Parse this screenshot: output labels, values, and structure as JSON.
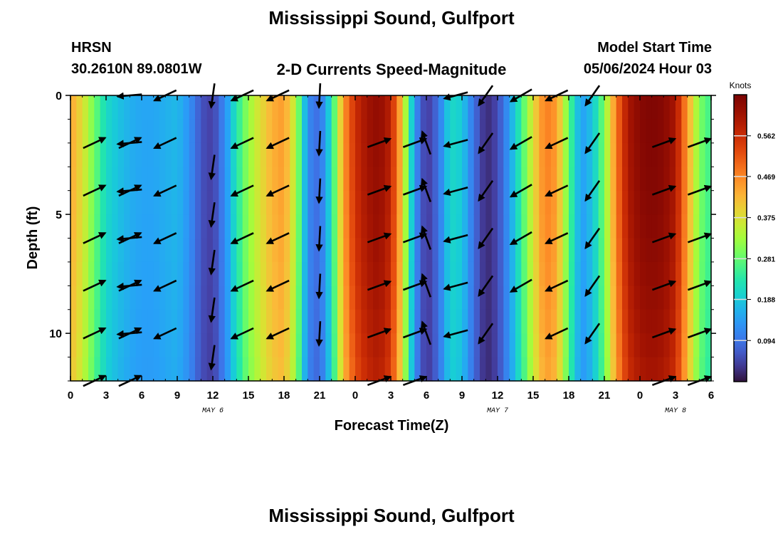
{
  "header": {
    "title": "Mississippi Sound, Gulfport",
    "station_id": "HRSN",
    "coordinates": "30.2610N  89.0801W",
    "subtitle": "2-D Currents Speed-Magnitude",
    "model_start_label": "Model Start Time",
    "model_start_value": "05/06/2024 Hour 03"
  },
  "footer": {
    "title": "Mississippi Sound, Gulfport"
  },
  "chart_data": {
    "type": "heatmap",
    "xlabel": "Forecast Time(Z)",
    "ylabel": "Depth (ft)",
    "x_range": [
      0,
      54
    ],
    "y_range": [
      0,
      12
    ],
    "y_inverted": true,
    "x_ticks": [
      0,
      3,
      6,
      9,
      12,
      15,
      18,
      21,
      24,
      27,
      30,
      33,
      36,
      39,
      42,
      45,
      48,
      51,
      54
    ],
    "x_tick_labels": [
      "0",
      "3",
      "6",
      "9",
      "12",
      "15",
      "18",
      "21",
      "0",
      "3",
      "6",
      "9",
      "12",
      "15",
      "18",
      "21",
      "0",
      "3",
      "6"
    ],
    "y_ticks": [
      0,
      5,
      10
    ],
    "y_tick_labels": [
      "0",
      "5",
      "10"
    ],
    "date_labels": [
      {
        "text": "MAY 6",
        "x": 12
      },
      {
        "text": "MAY 7",
        "x": 36
      },
      {
        "text": "MAY 8",
        "x": 51
      }
    ],
    "colorbar": {
      "title": "Knots",
      "range": [
        0,
        0.656
      ],
      "ticks": [
        0.094,
        0.188,
        0.281,
        0.375,
        0.469,
        0.562
      ],
      "tick_labels": [
        "0.094",
        "0.188",
        "0.281",
        "0.375",
        "0.469",
        "0.562"
      ],
      "colormap": "turbo"
    },
    "speed_by_hour": [
      {
        "t": 0,
        "v": 0.44
      },
      {
        "t": 1,
        "v": 0.38
      },
      {
        "t": 2,
        "v": 0.29
      },
      {
        "t": 3,
        "v": 0.21
      },
      {
        "t": 4,
        "v": 0.18
      },
      {
        "t": 5,
        "v": 0.16
      },
      {
        "t": 6,
        "v": 0.15
      },
      {
        "t": 7,
        "v": 0.15
      },
      {
        "t": 8,
        "v": 0.16
      },
      {
        "t": 9,
        "v": 0.17
      },
      {
        "t": 10,
        "v": 0.13
      },
      {
        "t": 11,
        "v": 0.06
      },
      {
        "t": 12,
        "v": 0.04
      },
      {
        "t": 13,
        "v": 0.12
      },
      {
        "t": 14,
        "v": 0.23
      },
      {
        "t": 15,
        "v": 0.32
      },
      {
        "t": 16,
        "v": 0.38
      },
      {
        "t": 17,
        "v": 0.43
      },
      {
        "t": 18,
        "v": 0.45
      },
      {
        "t": 19,
        "v": 0.34
      },
      {
        "t": 20,
        "v": 0.12
      },
      {
        "t": 21,
        "v": 0.08
      },
      {
        "t": 22,
        "v": 0.22
      },
      {
        "t": 23,
        "v": 0.45
      },
      {
        "t": 24,
        "v": 0.56
      },
      {
        "t": 25,
        "v": 0.61
      },
      {
        "t": 26,
        "v": 0.63
      },
      {
        "t": 27,
        "v": 0.58
      },
      {
        "t": 28,
        "v": 0.4
      },
      {
        "t": 29,
        "v": 0.13
      },
      {
        "t": 30,
        "v": 0.03
      },
      {
        "t": 31,
        "v": 0.09
      },
      {
        "t": 32,
        "v": 0.21
      },
      {
        "t": 33,
        "v": 0.19
      },
      {
        "t": 34,
        "v": 0.09
      },
      {
        "t": 35,
        "v": 0.02
      },
      {
        "t": 36,
        "v": 0.05
      },
      {
        "t": 37,
        "v": 0.14
      },
      {
        "t": 38,
        "v": 0.25
      },
      {
        "t": 39,
        "v": 0.38
      },
      {
        "t": 40,
        "v": 0.48
      },
      {
        "t": 41,
        "v": 0.45
      },
      {
        "t": 42,
        "v": 0.28
      },
      {
        "t": 43,
        "v": 0.14
      },
      {
        "t": 44,
        "v": 0.18
      },
      {
        "t": 45,
        "v": 0.3
      },
      {
        "t": 46,
        "v": 0.48
      },
      {
        "t": 47,
        "v": 0.6
      },
      {
        "t": 48,
        "v": 0.64
      },
      {
        "t": 49,
        "v": 0.65
      },
      {
        "t": 50,
        "v": 0.64
      },
      {
        "t": 51,
        "v": 0.6
      },
      {
        "t": 52,
        "v": 0.45
      },
      {
        "t": 53,
        "v": 0.3
      },
      {
        "t": 54,
        "v": 0.25
      }
    ],
    "vectors": [
      {
        "t": 2.0,
        "dir_deg": 65,
        "depths": [
          2,
          4,
          6,
          8,
          10,
          12
        ]
      },
      {
        "t": 5.0,
        "dir_deg": 65,
        "depths": [
          2,
          4,
          6,
          8,
          10,
          12
        ]
      },
      {
        "t": 5.0,
        "dir_deg": 265,
        "depths": [
          0,
          2,
          4,
          6,
          8,
          10
        ]
      },
      {
        "t": 8.0,
        "dir_deg": 245,
        "depths": [
          0,
          2,
          4,
          6,
          8,
          10
        ]
      },
      {
        "t": 12.0,
        "dir_deg": 188,
        "depths": [
          0,
          3,
          5,
          7,
          9,
          11
        ]
      },
      {
        "t": 14.5,
        "dir_deg": 245,
        "depths": [
          0,
          2,
          4,
          6,
          8,
          10
        ]
      },
      {
        "t": 17.5,
        "dir_deg": 245,
        "depths": [
          0,
          2,
          4,
          6,
          8,
          10
        ]
      },
      {
        "t": 21.0,
        "dir_deg": 183,
        "depths": [
          0,
          2,
          4,
          6,
          8,
          10
        ]
      },
      {
        "t": 26.0,
        "dir_deg": 70,
        "depths": [
          2,
          4,
          6,
          8,
          10,
          12
        ]
      },
      {
        "t": 29.0,
        "dir_deg": 70,
        "depths": [
          2,
          4,
          6,
          8,
          10,
          12
        ]
      },
      {
        "t": 30.0,
        "dir_deg": 340,
        "depths": [
          2,
          4,
          6,
          8,
          10
        ]
      },
      {
        "t": 32.5,
        "dir_deg": 255,
        "depths": [
          0,
          2,
          4,
          6,
          8,
          10
        ]
      },
      {
        "t": 35.0,
        "dir_deg": 215,
        "depths": [
          0,
          2,
          4,
          6,
          8,
          10
        ]
      },
      {
        "t": 38.0,
        "dir_deg": 240,
        "depths": [
          0,
          2,
          4,
          6,
          8
        ]
      },
      {
        "t": 41.0,
        "dir_deg": 245,
        "depths": [
          0,
          2,
          4,
          6,
          8,
          10
        ]
      },
      {
        "t": 44.0,
        "dir_deg": 215,
        "depths": [
          0,
          2,
          4,
          6,
          8,
          10
        ]
      },
      {
        "t": 50.0,
        "dir_deg": 70,
        "depths": [
          2,
          4,
          6,
          8,
          10,
          12
        ]
      },
      {
        "t": 53.0,
        "dir_deg": 70,
        "depths": [
          2,
          4,
          6,
          8,
          10,
          12
        ]
      }
    ]
  }
}
